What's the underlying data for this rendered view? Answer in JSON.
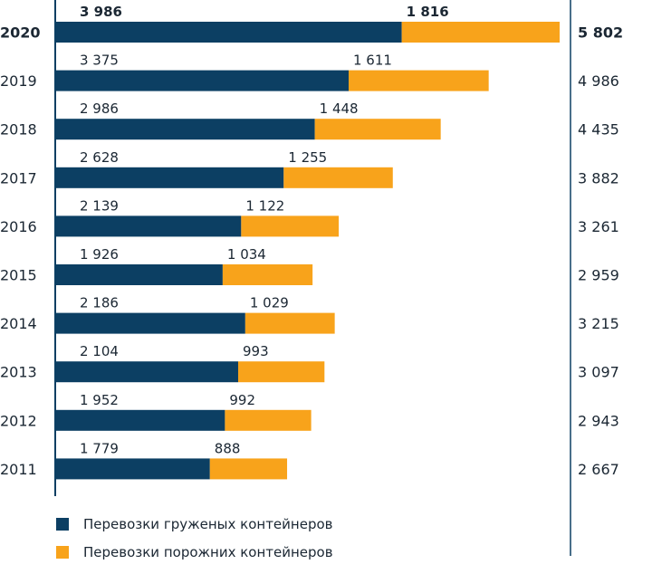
{
  "chart_data": {
    "type": "bar",
    "orientation": "horizontal",
    "stacked": true,
    "categories": [
      "2020",
      "2019",
      "2018",
      "2017",
      "2016",
      "2015",
      "2014",
      "2013",
      "2012",
      "2011"
    ],
    "series": [
      {
        "name": "Перевозки груженых контейнеров",
        "color": "#0c3f63",
        "values": [
          3986,
          3375,
          2986,
          2628,
          2139,
          1926,
          2186,
          2104,
          1952,
          1779
        ],
        "labels": [
          "3 986",
          "3 375",
          "2 986",
          "2 628",
          "2 139",
          "1 926",
          "2 186",
          "2 104",
          "1 952",
          "1 779"
        ]
      },
      {
        "name": "Перевозки порожних контейнеров",
        "color": "#f8a31b",
        "values": [
          1816,
          1611,
          1448,
          1255,
          1122,
          1034,
          1029,
          993,
          992,
          888
        ],
        "labels": [
          "1 816",
          "1 611",
          "1 448",
          "1 255",
          "1 122",
          "1 034",
          "1 029",
          "993",
          "992",
          "888"
        ]
      }
    ],
    "totals": [
      "5 802",
      "4 986",
      "4 435",
      "3 882",
      "3 261",
      "2 959",
      "3 215",
      "3 097",
      "2 943",
      "2 667"
    ],
    "highlight_category": "2020",
    "title": "",
    "xlabel": "",
    "ylabel": "",
    "xlim": [
      0,
      6000
    ],
    "grid": false,
    "legend_position": "bottom-left"
  },
  "legend": [
    {
      "label": "Перевозки груженых контейнеров",
      "color": "#0c3f63"
    },
    {
      "label": "Перевозки порожних контейнеров",
      "color": "#f8a31b"
    }
  ]
}
